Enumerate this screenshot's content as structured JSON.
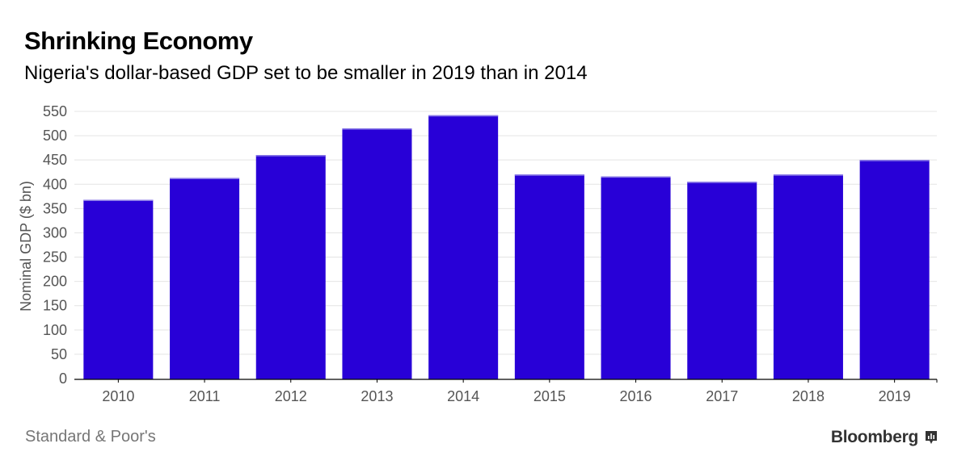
{
  "header": {
    "title": "Shrinking Economy",
    "subtitle": "Nigeria's dollar-based GDP set to be smaller in 2019 than in 2014"
  },
  "footer": {
    "source": "Standard & Poor's",
    "brand": "Bloomberg",
    "brand_icon": "bar-chart-icon"
  },
  "colors": {
    "bar": "#2800d7",
    "bar_top": "#8a7be6",
    "grid": "#e4e4e4",
    "axis": "#000000"
  },
  "chart_data": {
    "type": "bar",
    "title": "Shrinking Economy",
    "subtitle": "Nigeria's dollar-based GDP set to be smaller in 2019 than in 2014",
    "xlabel": "",
    "ylabel": "Nominal GDP ($ bn)",
    "categories": [
      "2010",
      "2011",
      "2012",
      "2013",
      "2014",
      "2015",
      "2016",
      "2017",
      "2018",
      "2019"
    ],
    "values": [
      368,
      413,
      460,
      515,
      542,
      420,
      416,
      405,
      420,
      450
    ],
    "ylim": [
      0,
      550
    ],
    "yticks": [
      0,
      50,
      100,
      150,
      200,
      250,
      300,
      350,
      400,
      450,
      500,
      550
    ],
    "grid": true,
    "legend": "none",
    "source": "Standard & Poor's"
  }
}
